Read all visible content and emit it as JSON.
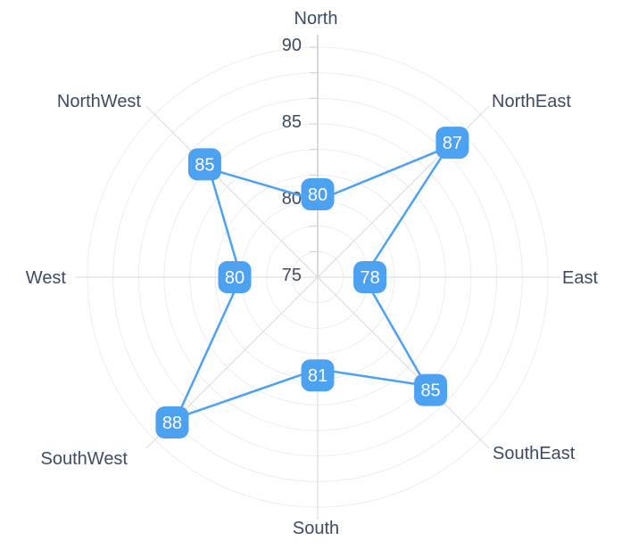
{
  "chart_data": {
    "type": "radar",
    "categories": [
      "North",
      "NorthEast",
      "East",
      "SouthEast",
      "South",
      "SouthWest",
      "West",
      "NorthWest"
    ],
    "values": [
      80,
      87,
      78,
      85,
      81,
      88,
      80,
      85
    ],
    "radial_axis": {
      "min": 75,
      "max": 90,
      "tick_labels": [
        "75",
        "80",
        "85",
        "90"
      ],
      "tick_values": [
        75,
        80,
        85,
        90
      ],
      "ring_count": 9,
      "grid": "on"
    },
    "title": "",
    "legend": "none",
    "colors": {
      "series_line": "#4da1f1",
      "badge_bg": "#4da1f1",
      "badge_text": "#ffffff",
      "category_label": "#3d4b63",
      "tick_label": "#3d4b63",
      "grid_ring": "#ededef",
      "spoke": "#d7dade",
      "axis_line": "#c9ced6"
    }
  }
}
